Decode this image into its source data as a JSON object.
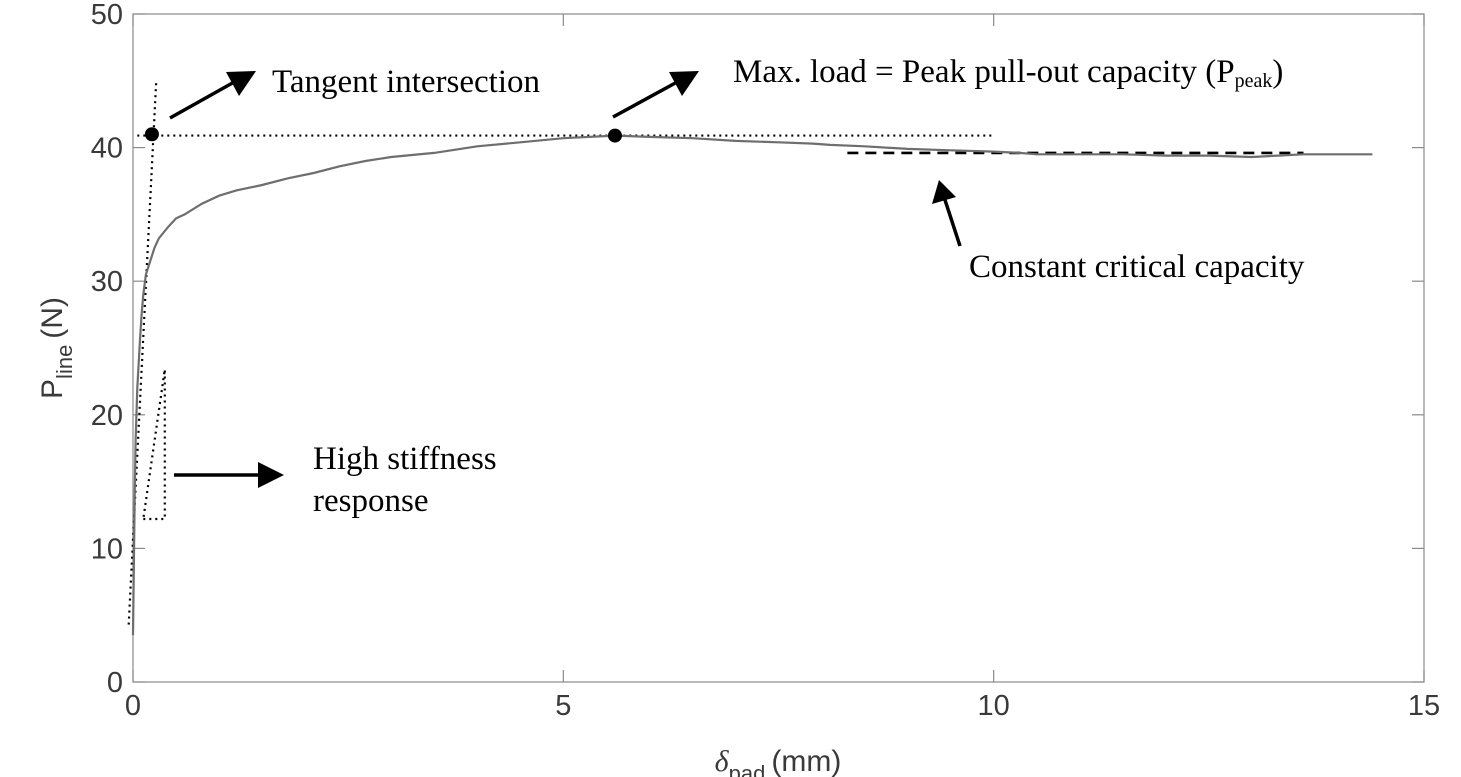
{
  "chart_data": {
    "type": "line",
    "x_unit_label": "(mm)",
    "x_symbol": "δ",
    "x_symbol_subscript": "pad",
    "y_symbol": "P",
    "y_symbol_subscript": "line",
    "y_unit_label": "(N)",
    "xlim": [
      0,
      15
    ],
    "ylim": [
      0,
      50
    ],
    "xticks": [
      0,
      5,
      10,
      15
    ],
    "yticks": [
      0,
      10,
      20,
      30,
      40,
      50
    ],
    "grid": false,
    "colors": {
      "curve": "#6e6e6e",
      "axes": "#8a8a8a",
      "annotation": "#000000"
    },
    "series": [
      {
        "x": [
          0.0,
          0.01,
          0.02,
          0.03,
          0.05,
          0.08,
          0.1,
          0.12,
          0.15,
          0.2,
          0.25,
          0.3,
          0.4,
          0.5,
          0.6,
          0.8,
          1.0,
          1.2,
          1.5,
          1.8,
          2.1,
          2.4,
          2.7,
          3.0,
          3.5,
          4.0,
          4.5,
          5.0,
          5.6,
          6.0,
          6.5,
          7.0,
          7.5,
          7.9,
          8.1,
          8.5,
          9.0,
          9.5,
          10.0,
          10.3,
          10.5,
          11.0,
          11.5,
          12.0,
          12.5,
          13.0,
          13.3,
          13.6,
          14.0,
          14.4
        ],
        "y": [
          3.5,
          9,
          14,
          18,
          22,
          25.5,
          27.5,
          29,
          30.5,
          31.5,
          32.5,
          33.2,
          34,
          34.7,
          35,
          35.8,
          36.4,
          36.8,
          37.2,
          37.7,
          38.1,
          38.6,
          39.0,
          39.3,
          39.6,
          40.1,
          40.4,
          40.7,
          40.9,
          40.8,
          40.7,
          40.5,
          40.4,
          40.3,
          40.2,
          40.1,
          39.9,
          39.8,
          39.7,
          39.6,
          39.5,
          39.5,
          39.5,
          39.4,
          39.4,
          39.3,
          39.4,
          39.5,
          39.5,
          39.5
        ]
      }
    ],
    "markers": [
      {
        "x": 0.22,
        "y": 41.0
      },
      {
        "x": 5.6,
        "y": 40.9
      }
    ],
    "guides": {
      "peak_line": {
        "x": [
          0.05,
          10.0
        ],
        "y": 40.9
      },
      "tangent_line": {
        "x": [
          -0.05,
          0.27
        ],
        "y": [
          4.3,
          45.0
        ]
      },
      "critical_line": {
        "x": [
          8.3,
          13.6
        ],
        "y": 39.6
      },
      "stiffness_triangle": [
        [
          0.12,
          12.2
        ],
        [
          0.37,
          12.2
        ],
        [
          0.37,
          23.4
        ]
      ]
    },
    "annotations": {
      "tangent": "Tangent intersection",
      "peak_prefix": "Max. load = Peak pull-out capacity (P",
      "peak_sub": "peak",
      "peak_suffix": ")",
      "critical": "Constant critical capacity",
      "stiffness_line1": "High stiffness",
      "stiffness_line2": "response"
    }
  }
}
